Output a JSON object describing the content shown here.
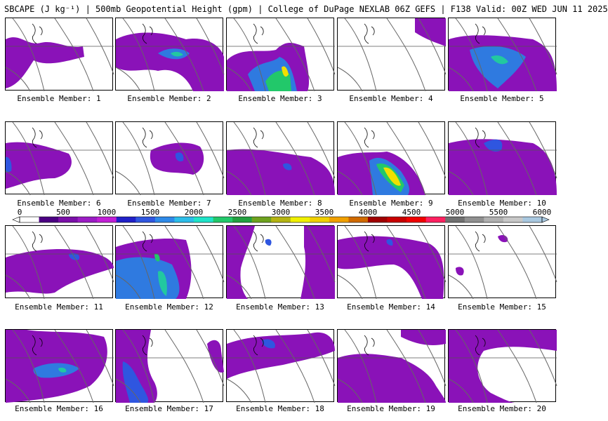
{
  "title": "SBCAPE (J kg⁻¹) | 500mb Geopotential Height (gpm) | College of DuPage NEXLAB 06Z GEFS | F138 Valid: 00Z WED JUN 11 2025",
  "member_label_prefix": "Ensemble Member: ",
  "colorbar": {
    "ticks": [
      "0",
      "500",
      "1000",
      "1500",
      "2000",
      "2500",
      "3000",
      "3500",
      "4000",
      "4500",
      "5000",
      "5500",
      "6000"
    ],
    "colors": [
      "#ffffff",
      "#4b0082",
      "#7a0fa8",
      "#9b1cc4",
      "#c21fd6",
      "#2020c8",
      "#2f56e0",
      "#2e8ae8",
      "#2cbde8",
      "#1fe3c8",
      "#22c86a",
      "#22a040",
      "#6ea21e",
      "#b4b412",
      "#f0f000",
      "#f0d000",
      "#f0a000",
      "#d06a00",
      "#a00000",
      "#c80000",
      "#f00000",
      "#ff2060",
      "#707070",
      "#909090",
      "#b0b0b0",
      "#c8c8c8",
      "#a8c8e0"
    ]
  },
  "members": [
    {
      "label": "1"
    },
    {
      "label": "2"
    },
    {
      "label": "3"
    },
    {
      "label": "4"
    },
    {
      "label": "5"
    },
    {
      "label": "6"
    },
    {
      "label": "7"
    },
    {
      "label": "8"
    },
    {
      "label": "9"
    },
    {
      "label": "10"
    },
    {
      "label": "11"
    },
    {
      "label": "12"
    },
    {
      "label": "13"
    },
    {
      "label": "14"
    },
    {
      "label": "15"
    },
    {
      "label": "16"
    },
    {
      "label": "17"
    },
    {
      "label": "18"
    },
    {
      "label": "19"
    },
    {
      "label": "20"
    }
  ]
}
